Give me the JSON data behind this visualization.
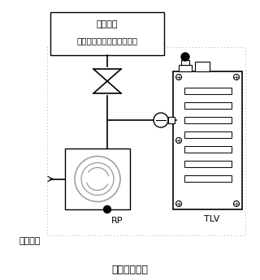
{
  "title": "排気系取付例",
  "box1_label_line1": "被排気系",
  "box1_label_line2": "（主ポンプ、チャンバ等）",
  "tlv_label": "TLV",
  "rp_label": "RP",
  "power_label": "電源入力",
  "bg_color": "#ffffff",
  "line_color": "#000000",
  "gray_color": "#999999",
  "dashed_color": "#aaaaaa",
  "font_size_main": 8,
  "font_size_title": 9
}
